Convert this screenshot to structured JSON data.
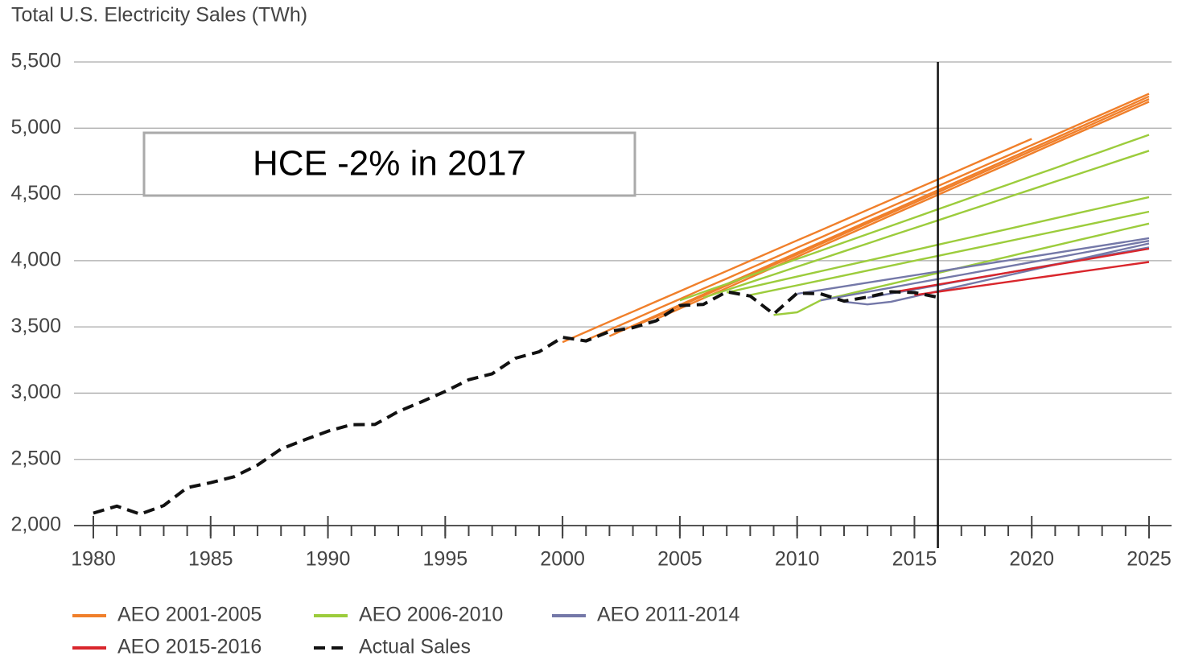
{
  "chart_data": {
    "type": "line",
    "title": "Total U.S. Electricity Sales (TWh)",
    "annotation": "HCE -2% in 2017",
    "vline": 2016,
    "x": [
      1980,
      1981,
      1982,
      1983,
      1984,
      1985,
      1986,
      1987,
      1988,
      1989,
      1990,
      1991,
      1992,
      1993,
      1994,
      1995,
      1996,
      1997,
      1998,
      1999,
      2000,
      2001,
      2002,
      2003,
      2004,
      2005,
      2006,
      2007,
      2008,
      2009,
      2010,
      2011,
      2012,
      2013,
      2014,
      2015,
      2016,
      2017,
      2018,
      2019,
      2020,
      2021,
      2022,
      2023,
      2024,
      2025
    ],
    "xlim": [
      1980,
      2025
    ],
    "xticks": [
      1980,
      1985,
      1990,
      1995,
      2000,
      2005,
      2010,
      2015,
      2020,
      2025
    ],
    "ylim": [
      2000,
      5500
    ],
    "yticks": [
      {
        "value": 2000,
        "label": "2,000"
      },
      {
        "value": 2500,
        "label": "2,500"
      },
      {
        "value": 3000,
        "label": "3,000"
      },
      {
        "value": 3500,
        "label": "3,500"
      },
      {
        "value": 4000,
        "label": "4,000"
      },
      {
        "value": 4500,
        "label": "4,500"
      },
      {
        "value": 5000,
        "label": "5,000"
      },
      {
        "value": 5500,
        "label": "5,500"
      }
    ],
    "grid": true,
    "series": [
      {
        "name": "AEO 2001-2005",
        "color": "#f07f2a",
        "values": [
          [
            null,
            null,
            null,
            null,
            null,
            null,
            null,
            null,
            null,
            null,
            null,
            null,
            null,
            null,
            null,
            null,
            null,
            null,
            null,
            null,
            3385,
            3462,
            3539,
            3615,
            3692,
            3769,
            3846,
            3922,
            3999,
            4076,
            4153,
            4229,
            4306,
            4383,
            4460,
            4536,
            4613,
            4690,
            4767,
            4843,
            4920,
            null,
            null,
            null,
            null,
            null
          ],
          [
            null,
            null,
            null,
            null,
            null,
            null,
            null,
            null,
            null,
            null,
            null,
            null,
            null,
            null,
            null,
            null,
            null,
            null,
            null,
            null,
            null,
            3400,
            3478,
            3555,
            3633,
            3710,
            3788,
            3865,
            3943,
            4020,
            4098,
            4175,
            4253,
            4330,
            4408,
            4485,
            4563,
            4640,
            4718,
            4795,
            4873,
            4950,
            5028,
            5105,
            5183,
            5260
          ],
          [
            null,
            null,
            null,
            null,
            null,
            null,
            null,
            null,
            null,
            null,
            null,
            null,
            null,
            null,
            null,
            null,
            null,
            null,
            null,
            null,
            null,
            null,
            3430,
            3509,
            3587,
            3666,
            3745,
            3824,
            3902,
            3981,
            4060,
            4138,
            4217,
            4296,
            4374,
            4453,
            4532,
            4611,
            4689,
            4768,
            4847,
            4925,
            5004,
            5083,
            5161,
            5240
          ],
          [
            null,
            null,
            null,
            null,
            null,
            null,
            null,
            null,
            null,
            null,
            null,
            null,
            null,
            null,
            null,
            null,
            null,
            null,
            null,
            null,
            null,
            null,
            null,
            3500,
            3578,
            3656,
            3735,
            3813,
            3891,
            3969,
            4047,
            4126,
            4204,
            4282,
            4360,
            4438,
            4516,
            4595,
            4673,
            4751,
            4829,
            4907,
            4985,
            5064,
            5142,
            5220
          ],
          [
            null,
            null,
            null,
            null,
            null,
            null,
            null,
            null,
            null,
            null,
            null,
            null,
            null,
            null,
            null,
            null,
            null,
            null,
            null,
            null,
            null,
            null,
            null,
            null,
            3560,
            3638,
            3716,
            3794,
            3872,
            3950,
            4029,
            4107,
            4185,
            4263,
            4341,
            4419,
            4497,
            4575,
            4653,
            4731,
            4810,
            4888,
            4966,
            5044,
            5122,
            5200
          ]
        ]
      },
      {
        "name": "AEO 2006-2010",
        "color": "#9ccc3c",
        "values": [
          [
            null,
            null,
            null,
            null,
            null,
            null,
            null,
            null,
            null,
            null,
            null,
            null,
            null,
            null,
            null,
            null,
            null,
            null,
            null,
            null,
            null,
            null,
            null,
            null,
            null,
            3700,
            3763,
            3825,
            3888,
            3950,
            4013,
            4075,
            4138,
            4200,
            4263,
            4325,
            4388,
            4450,
            4513,
            4575,
            4638,
            4700,
            4763,
            4825,
            4888,
            4950
          ],
          [
            null,
            null,
            null,
            null,
            null,
            null,
            null,
            null,
            null,
            null,
            null,
            null,
            null,
            null,
            null,
            null,
            null,
            null,
            null,
            null,
            null,
            null,
            null,
            null,
            null,
            null,
            3720,
            3778,
            3837,
            3895,
            3954,
            4012,
            4071,
            4129,
            4188,
            4246,
            4304,
            4363,
            4421,
            4480,
            4538,
            4597,
            4655,
            4713,
            4772,
            4830
          ],
          [
            null,
            null,
            null,
            null,
            null,
            null,
            null,
            null,
            null,
            null,
            null,
            null,
            null,
            null,
            null,
            null,
            null,
            null,
            null,
            null,
            null,
            null,
            null,
            null,
            null,
            null,
            null,
            3760,
            3800,
            3840,
            3880,
            3920,
            3960,
            4000,
            4040,
            4080,
            4120,
            4160,
            4200,
            4240,
            4280,
            4320,
            4360,
            4400,
            4440,
            4480
          ],
          [
            null,
            null,
            null,
            null,
            null,
            null,
            null,
            null,
            null,
            null,
            null,
            null,
            null,
            null,
            null,
            null,
            null,
            null,
            null,
            null,
            null,
            null,
            null,
            null,
            null,
            null,
            null,
            null,
            3740,
            3777,
            3814,
            3851,
            3888,
            3925,
            3962,
            3999,
            4036,
            4073,
            4110,
            4147,
            4184,
            4221,
            4258,
            4295,
            4333,
            4370
          ],
          [
            null,
            null,
            null,
            null,
            null,
            null,
            null,
            null,
            null,
            null,
            null,
            null,
            null,
            null,
            null,
            null,
            null,
            null,
            null,
            null,
            null,
            null,
            null,
            null,
            null,
            null,
            null,
            null,
            null,
            3590,
            3610,
            3700,
            3741,
            3783,
            3824,
            3866,
            3907,
            3949,
            3990,
            4031,
            4073,
            4114,
            4156,
            4197,
            4239,
            4280
          ]
        ]
      },
      {
        "name": "AEO 2011-2014",
        "color": "#7478a8",
        "values": [
          [
            null,
            null,
            null,
            null,
            null,
            null,
            null,
            null,
            null,
            null,
            null,
            null,
            null,
            null,
            null,
            null,
            null,
            null,
            null,
            null,
            null,
            null,
            null,
            null,
            null,
            null,
            null,
            null,
            null,
            null,
            3750,
            3778,
            3806,
            3834,
            3862,
            3890,
            3918,
            3946,
            3974,
            4002,
            4030,
            4058,
            4086,
            4114,
            4142,
            4170
          ],
          [
            null,
            null,
            null,
            null,
            null,
            null,
            null,
            null,
            null,
            null,
            null,
            null,
            null,
            null,
            null,
            null,
            null,
            null,
            null,
            null,
            null,
            null,
            null,
            null,
            null,
            null,
            null,
            null,
            null,
            null,
            null,
            3700,
            3732,
            3764,
            3796,
            3829,
            3861,
            3893,
            3925,
            3957,
            3989,
            4021,
            4054,
            4086,
            4118,
            4150
          ],
          [
            null,
            null,
            null,
            null,
            null,
            null,
            null,
            null,
            null,
            null,
            null,
            null,
            null,
            null,
            null,
            null,
            null,
            null,
            null,
            null,
            null,
            null,
            null,
            null,
            null,
            null,
            null,
            null,
            null,
            null,
            null,
            null,
            3690,
            3670,
            3690,
            3730,
            3770,
            3810,
            3850,
            3890,
            3930,
            3970,
            4010,
            4050,
            4090,
            4130
          ],
          [
            null,
            null,
            null,
            null,
            null,
            null,
            null,
            null,
            null,
            null,
            null,
            null,
            null,
            null,
            null,
            null,
            null,
            null,
            null,
            null,
            null,
            null,
            null,
            null,
            null,
            null,
            null,
            null,
            null,
            null,
            null,
            null,
            null,
            3720,
            3752,
            3783,
            3815,
            3847,
            3878,
            3910,
            3942,
            3973,
            4005,
            4037,
            4068,
            4100
          ]
        ]
      },
      {
        "name": "AEO 2015-2016",
        "color": "#d9262c",
        "values": [
          [
            null,
            null,
            null,
            null,
            null,
            null,
            null,
            null,
            null,
            null,
            null,
            null,
            null,
            null,
            null,
            null,
            null,
            null,
            null,
            null,
            null,
            null,
            null,
            null,
            null,
            null,
            null,
            null,
            null,
            null,
            null,
            null,
            null,
            null,
            3760,
            3790,
            3820,
            3850,
            3880,
            3910,
            3940,
            3970,
            4000,
            4030,
            4060,
            4090
          ],
          [
            null,
            null,
            null,
            null,
            null,
            null,
            null,
            null,
            null,
            null,
            null,
            null,
            null,
            null,
            null,
            null,
            null,
            null,
            null,
            null,
            null,
            null,
            null,
            null,
            null,
            null,
            null,
            null,
            null,
            null,
            null,
            null,
            null,
            null,
            null,
            3740,
            3765,
            3790,
            3815,
            3840,
            3865,
            3890,
            3915,
            3940,
            3965,
            3990
          ]
        ]
      },
      {
        "name": "Actual Sales",
        "color": "#111111",
        "dashed": true,
        "values": [
          [
            2094,
            2147,
            2086,
            2151,
            2286,
            2324,
            2369,
            2457,
            2578,
            2647,
            2713,
            2762,
            2763,
            2861,
            2935,
            3013,
            3101,
            3146,
            3264,
            3312,
            3421,
            3394,
            3465,
            3494,
            3547,
            3661,
            3670,
            3765,
            3733,
            3597,
            3755,
            3750,
            3695,
            3725,
            3765,
            3759,
            3724,
            null,
            null,
            null,
            null,
            null,
            null,
            null,
            null,
            null
          ]
        ]
      }
    ]
  }
}
